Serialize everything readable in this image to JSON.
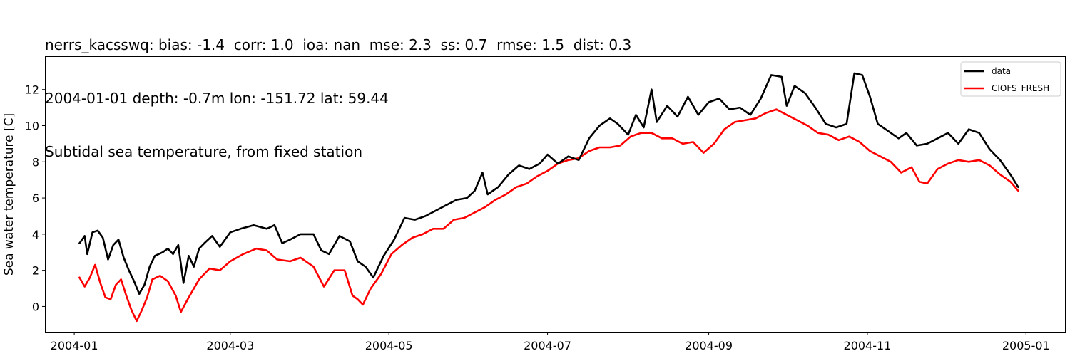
{
  "chart_data": {
    "type": "line",
    "title": [
      "nerrs_kacsswq: bias: -1.4  corr: 1.0  ioa: nan  mse: 2.3  ss: 0.7  rmse: 1.5  dist: 0.3",
      "2004-01-01 depth: -0.7m lon: -151.72 lat: 59.44",
      "Subtidal sea temperature, from fixed station"
    ],
    "xlabel": "",
    "ylabel": "Sea water temperature [C]",
    "xlim": [
      "2003-12-21",
      "2005-01-16"
    ],
    "ylim": [
      -1.4,
      13.8
    ],
    "x_ticks": [
      "2004-01",
      "2004-03",
      "2004-05",
      "2004-07",
      "2004-09",
      "2004-11",
      "2005-01"
    ],
    "y_ticks": [
      0,
      2,
      4,
      6,
      8,
      10,
      12
    ],
    "grid": false,
    "legend": "top-right",
    "series": [
      {
        "name": "data",
        "color": "#000000",
        "points": [
          [
            "2004-01-03",
            3.5
          ],
          [
            "2004-01-05",
            3.9
          ],
          [
            "2004-01-06",
            2.9
          ],
          [
            "2004-01-08",
            4.1
          ],
          [
            "2004-01-10",
            4.2
          ],
          [
            "2004-01-12",
            3.8
          ],
          [
            "2004-01-14",
            2.6
          ],
          [
            "2004-01-16",
            3.4
          ],
          [
            "2004-01-18",
            3.7
          ],
          [
            "2004-01-20",
            2.7
          ],
          [
            "2004-01-22",
            2.0
          ],
          [
            "2004-01-24",
            1.4
          ],
          [
            "2004-01-26",
            0.7
          ],
          [
            "2004-01-28",
            1.2
          ],
          [
            "2004-01-30",
            2.2
          ],
          [
            "2004-02-01",
            2.8
          ],
          [
            "2004-02-04",
            3.0
          ],
          [
            "2004-02-06",
            3.2
          ],
          [
            "2004-02-08",
            2.9
          ],
          [
            "2004-02-10",
            3.4
          ],
          [
            "2004-02-12",
            1.3
          ],
          [
            "2004-02-14",
            2.8
          ],
          [
            "2004-02-16",
            2.2
          ],
          [
            "2004-02-18",
            3.2
          ],
          [
            "2004-02-20",
            3.5
          ],
          [
            "2004-02-23",
            3.9
          ],
          [
            "2004-02-26",
            3.3
          ],
          [
            "2004-03-01",
            4.1
          ],
          [
            "2004-03-05",
            4.3
          ],
          [
            "2004-03-10",
            4.5
          ],
          [
            "2004-03-15",
            4.3
          ],
          [
            "2004-03-18",
            4.5
          ],
          [
            "2004-03-21",
            3.5
          ],
          [
            "2004-03-24",
            3.7
          ],
          [
            "2004-03-28",
            4.0
          ],
          [
            "2004-04-02",
            4.0
          ],
          [
            "2004-04-05",
            3.1
          ],
          [
            "2004-04-08",
            2.9
          ],
          [
            "2004-04-12",
            3.9
          ],
          [
            "2004-04-16",
            3.6
          ],
          [
            "2004-04-19",
            2.5
          ],
          [
            "2004-04-22",
            2.2
          ],
          [
            "2004-04-25",
            1.6
          ],
          [
            "2004-04-29",
            2.8
          ],
          [
            "2004-05-03",
            3.7
          ],
          [
            "2004-05-07",
            4.9
          ],
          [
            "2004-05-11",
            4.8
          ],
          [
            "2004-05-15",
            5.0
          ],
          [
            "2004-05-19",
            5.3
          ],
          [
            "2004-05-23",
            5.6
          ],
          [
            "2004-05-27",
            5.9
          ],
          [
            "2004-05-31",
            6.0
          ],
          [
            "2004-06-03",
            6.4
          ],
          [
            "2004-06-06",
            7.4
          ],
          [
            "2004-06-08",
            6.2
          ],
          [
            "2004-06-12",
            6.6
          ],
          [
            "2004-06-16",
            7.3
          ],
          [
            "2004-06-20",
            7.8
          ],
          [
            "2004-06-24",
            7.6
          ],
          [
            "2004-06-28",
            7.9
          ],
          [
            "2004-07-01",
            8.4
          ],
          [
            "2004-07-05",
            7.9
          ],
          [
            "2004-07-09",
            8.3
          ],
          [
            "2004-07-13",
            8.1
          ],
          [
            "2004-07-17",
            9.3
          ],
          [
            "2004-07-21",
            10.0
          ],
          [
            "2004-07-25",
            10.4
          ],
          [
            "2004-07-28",
            10.1
          ],
          [
            "2004-08-01",
            9.5
          ],
          [
            "2004-08-04",
            10.6
          ],
          [
            "2004-08-07",
            9.9
          ],
          [
            "2004-08-10",
            12.0
          ],
          [
            "2004-08-12",
            10.2
          ],
          [
            "2004-08-16",
            11.1
          ],
          [
            "2004-08-20",
            10.5
          ],
          [
            "2004-08-24",
            11.6
          ],
          [
            "2004-08-28",
            10.6
          ],
          [
            "2004-09-01",
            11.3
          ],
          [
            "2004-09-05",
            11.5
          ],
          [
            "2004-09-09",
            10.9
          ],
          [
            "2004-09-13",
            11.0
          ],
          [
            "2004-09-17",
            10.6
          ],
          [
            "2004-09-21",
            11.5
          ],
          [
            "2004-09-25",
            12.8
          ],
          [
            "2004-09-29",
            12.7
          ],
          [
            "2004-10-01",
            11.1
          ],
          [
            "2004-10-04",
            12.2
          ],
          [
            "2004-10-08",
            11.8
          ],
          [
            "2004-10-12",
            11.0
          ],
          [
            "2004-10-16",
            10.1
          ],
          [
            "2004-10-20",
            9.9
          ],
          [
            "2004-10-24",
            10.1
          ],
          [
            "2004-10-27",
            12.9
          ],
          [
            "2004-10-30",
            12.8
          ],
          [
            "2004-11-02",
            11.6
          ],
          [
            "2004-11-05",
            10.1
          ],
          [
            "2004-11-09",
            9.7
          ],
          [
            "2004-11-13",
            9.3
          ],
          [
            "2004-11-16",
            9.6
          ],
          [
            "2004-11-20",
            8.9
          ],
          [
            "2004-11-24",
            9.0
          ],
          [
            "2004-11-28",
            9.3
          ],
          [
            "2004-12-02",
            9.6
          ],
          [
            "2004-12-06",
            9.0
          ],
          [
            "2004-12-10",
            9.8
          ],
          [
            "2004-12-14",
            9.6
          ],
          [
            "2004-12-18",
            8.7
          ],
          [
            "2004-12-22",
            8.1
          ],
          [
            "2004-12-26",
            7.3
          ],
          [
            "2004-12-29",
            6.6
          ]
        ]
      },
      {
        "name": "CIOFS_FRESH",
        "color": "#ff0000",
        "points": [
          [
            "2004-01-03",
            1.6
          ],
          [
            "2004-01-05",
            1.1
          ],
          [
            "2004-01-07",
            1.6
          ],
          [
            "2004-01-09",
            2.3
          ],
          [
            "2004-01-11",
            1.3
          ],
          [
            "2004-01-13",
            0.5
          ],
          [
            "2004-01-15",
            0.4
          ],
          [
            "2004-01-17",
            1.2
          ],
          [
            "2004-01-19",
            1.5
          ],
          [
            "2004-01-21",
            0.6
          ],
          [
            "2004-01-23",
            -0.2
          ],
          [
            "2004-01-25",
            -0.8
          ],
          [
            "2004-01-27",
            -0.2
          ],
          [
            "2004-01-29",
            0.5
          ],
          [
            "2004-01-31",
            1.5
          ],
          [
            "2004-02-03",
            1.7
          ],
          [
            "2004-02-06",
            1.4
          ],
          [
            "2004-02-09",
            0.6
          ],
          [
            "2004-02-11",
            -0.3
          ],
          [
            "2004-02-14",
            0.5
          ],
          [
            "2004-02-18",
            1.5
          ],
          [
            "2004-02-22",
            2.1
          ],
          [
            "2004-02-26",
            2.0
          ],
          [
            "2004-03-01",
            2.5
          ],
          [
            "2004-03-06",
            2.9
          ],
          [
            "2004-03-11",
            3.2
          ],
          [
            "2004-03-15",
            3.1
          ],
          [
            "2004-03-19",
            2.6
          ],
          [
            "2004-03-24",
            2.5
          ],
          [
            "2004-03-28",
            2.7
          ],
          [
            "2004-04-02",
            2.2
          ],
          [
            "2004-04-06",
            1.1
          ],
          [
            "2004-04-10",
            2.0
          ],
          [
            "2004-04-14",
            2.0
          ],
          [
            "2004-04-17",
            0.6
          ],
          [
            "2004-04-19",
            0.4
          ],
          [
            "2004-04-21",
            0.1
          ],
          [
            "2004-04-24",
            1.0
          ],
          [
            "2004-04-28",
            1.8
          ],
          [
            "2004-05-02",
            2.9
          ],
          [
            "2004-05-06",
            3.4
          ],
          [
            "2004-05-10",
            3.8
          ],
          [
            "2004-05-14",
            4.0
          ],
          [
            "2004-05-18",
            4.3
          ],
          [
            "2004-05-22",
            4.3
          ],
          [
            "2004-05-26",
            4.8
          ],
          [
            "2004-05-30",
            4.9
          ],
          [
            "2004-06-03",
            5.2
          ],
          [
            "2004-06-07",
            5.5
          ],
          [
            "2004-06-11",
            5.9
          ],
          [
            "2004-06-15",
            6.2
          ],
          [
            "2004-06-19",
            6.6
          ],
          [
            "2004-06-23",
            6.8
          ],
          [
            "2004-06-27",
            7.2
          ],
          [
            "2004-07-01",
            7.5
          ],
          [
            "2004-07-05",
            7.9
          ],
          [
            "2004-07-09",
            8.1
          ],
          [
            "2004-07-13",
            8.2
          ],
          [
            "2004-07-17",
            8.6
          ],
          [
            "2004-07-21",
            8.8
          ],
          [
            "2004-07-25",
            8.8
          ],
          [
            "2004-07-29",
            8.9
          ],
          [
            "2004-08-02",
            9.4
          ],
          [
            "2004-08-06",
            9.6
          ],
          [
            "2004-08-10",
            9.6
          ],
          [
            "2004-08-14",
            9.3
          ],
          [
            "2004-08-18",
            9.3
          ],
          [
            "2004-08-22",
            9.0
          ],
          [
            "2004-08-26",
            9.1
          ],
          [
            "2004-08-30",
            8.5
          ],
          [
            "2004-09-03",
            9.0
          ],
          [
            "2004-09-07",
            9.8
          ],
          [
            "2004-09-11",
            10.2
          ],
          [
            "2004-09-15",
            10.3
          ],
          [
            "2004-09-19",
            10.4
          ],
          [
            "2004-09-23",
            10.7
          ],
          [
            "2004-09-27",
            10.9
          ],
          [
            "2004-10-01",
            10.6
          ],
          [
            "2004-10-05",
            10.3
          ],
          [
            "2004-10-09",
            10.0
          ],
          [
            "2004-10-13",
            9.6
          ],
          [
            "2004-10-17",
            9.5
          ],
          [
            "2004-10-21",
            9.2
          ],
          [
            "2004-10-25",
            9.4
          ],
          [
            "2004-10-29",
            9.1
          ],
          [
            "2004-11-02",
            8.6
          ],
          [
            "2004-11-06",
            8.3
          ],
          [
            "2004-11-10",
            8.0
          ],
          [
            "2004-11-14",
            7.4
          ],
          [
            "2004-11-18",
            7.7
          ],
          [
            "2004-11-21",
            6.9
          ],
          [
            "2004-11-24",
            6.8
          ],
          [
            "2004-11-28",
            7.6
          ],
          [
            "2004-12-02",
            7.9
          ],
          [
            "2004-12-06",
            8.1
          ],
          [
            "2004-12-10",
            8.0
          ],
          [
            "2004-12-14",
            8.1
          ],
          [
            "2004-12-18",
            7.8
          ],
          [
            "2004-12-22",
            7.3
          ],
          [
            "2004-12-26",
            6.9
          ],
          [
            "2004-12-29",
            6.4
          ]
        ]
      }
    ]
  }
}
